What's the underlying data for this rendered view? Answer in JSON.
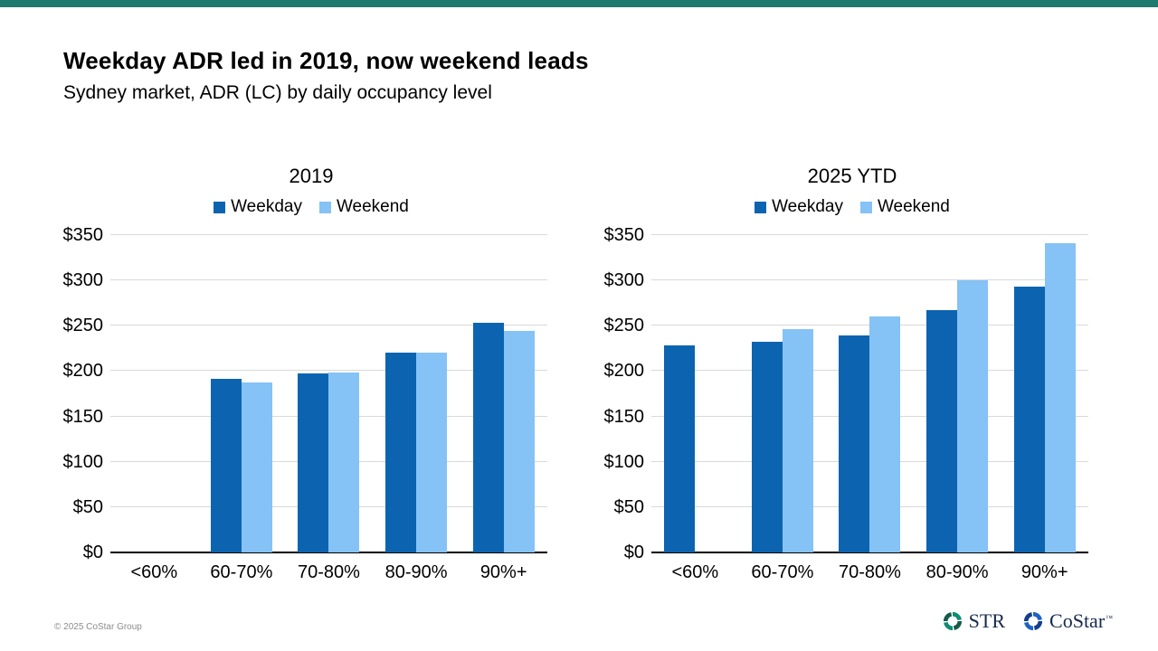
{
  "slide": {
    "title": "Weekday ADR led in 2019, now weekend leads",
    "subtitle": "Sydney market, ADR (LC) by daily occupancy level",
    "footer_copyright": "© 2025 CoStar Group",
    "accent_bar_color": "#1E7A6F"
  },
  "colors": {
    "weekday": "#0C64B0",
    "weekend": "#85C2F5",
    "gridline": "#D9D9D9",
    "axis_line": "#000000"
  },
  "logos": {
    "str_label": "STR",
    "costar_label": "CoStar",
    "costar_tm": "™",
    "str_icon_colors": [
      "#0E8C74",
      "#17594B"
    ],
    "costar_icon_colors": [
      "#1E63C4",
      "#123E8C"
    ]
  },
  "chart_data": [
    {
      "type": "bar",
      "title": "2019",
      "categories": [
        "<60%",
        "60-70%",
        "70-80%",
        "80-90%",
        "90%+"
      ],
      "series": [
        {
          "name": "Weekday",
          "color_key": "weekday",
          "values": [
            null,
            191,
            197,
            220,
            253
          ]
        },
        {
          "name": "Weekend",
          "color_key": "weekend",
          "values": [
            null,
            187,
            198,
            220,
            244
          ]
        }
      ],
      "ylim": [
        0,
        350
      ],
      "ytick_step": 50,
      "ytick_prefix": "$",
      "legend_position": "top",
      "grid": true
    },
    {
      "type": "bar",
      "title": "2025 YTD",
      "categories": [
        "<60%",
        "60-70%",
        "70-80%",
        "80-90%",
        "90%+"
      ],
      "series": [
        {
          "name": "Weekday",
          "color_key": "weekday",
          "values": [
            228,
            232,
            239,
            267,
            293
          ]
        },
        {
          "name": "Weekend",
          "color_key": "weekend",
          "values": [
            null,
            246,
            260,
            300,
            341
          ]
        }
      ],
      "ylim": [
        0,
        350
      ],
      "ytick_step": 50,
      "ytick_prefix": "$",
      "legend_position": "top",
      "grid": true
    }
  ]
}
